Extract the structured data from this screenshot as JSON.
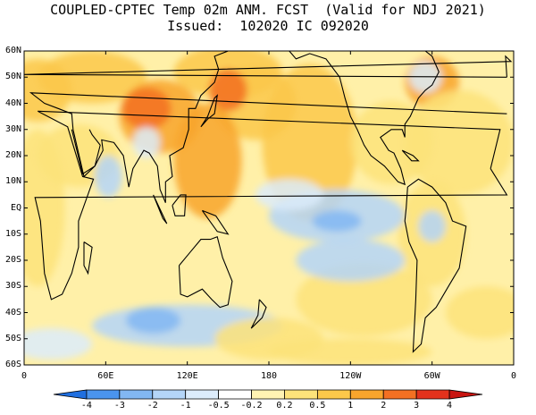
{
  "title": {
    "line1": "COUPLED-CPTEC Temp 02m ANM. FCST  (Valid for NDJ 2021)",
    "line2": "Issued:  102020 IC 092020"
  },
  "lat_labels": [
    "60N",
    "50N",
    "40N",
    "30N",
    "20N",
    "10N",
    "EQ",
    "10S",
    "20S",
    "30S",
    "40S",
    "50S",
    "60S"
  ],
  "lon_labels": [
    "0",
    "60E",
    "120E",
    "180",
    "120W",
    "60W",
    "0"
  ],
  "colorbar": {
    "labels": [
      "-4",
      "-3",
      "-2",
      "-1",
      "-0.5",
      "-0.2",
      "0.2",
      "0.5",
      "1",
      "2",
      "3",
      "4"
    ],
    "colors": [
      "#1f6fe0",
      "#4a94ee",
      "#82b7f2",
      "#b4d5f8",
      "#dcecfb",
      "#ffffff",
      "#fff3b3",
      "#fde37a",
      "#fcc84a",
      "#f8a52c",
      "#f37022",
      "#e3321c",
      "#c81410"
    ]
  },
  "map_colors": {
    "ocean_base": "#fff0a8",
    "warm_light": "#fde37a",
    "warm_mid": "#fcc84a",
    "warm_strong": "#f8a52c",
    "warm_hot": "#f37022",
    "cool_light": "#dcecfb",
    "cool_mid": "#b4d5f8",
    "cool_strong": "#82b7f2",
    "coast": "#000000"
  }
}
